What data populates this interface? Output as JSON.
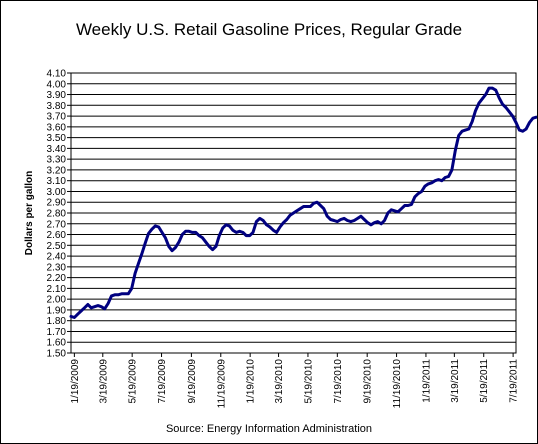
{
  "chart_data": {
    "type": "line",
    "title": "Weekly U.S. Retail Gasoline Prices, Regular Grade",
    "ylabel": "Dollars per gallon",
    "xlabel": "",
    "source": "Source:  Energy Information Administration",
    "ylim": [
      1.5,
      4.1
    ],
    "ystep": 0.1,
    "xlim": [
      "2009-01-12",
      "2011-07-25"
    ],
    "grid": "horizontal",
    "line_color": "#000080",
    "ytick_labels": [
      "1.50",
      "1.60",
      "1.70",
      "1.80",
      "1.90",
      "2.00",
      "2.10",
      "2.20",
      "2.30",
      "2.40",
      "2.50",
      "2.60",
      "2.70",
      "2.80",
      "2.90",
      "3.00",
      "3.10",
      "3.20",
      "3.30",
      "3.40",
      "3.50",
      "3.60",
      "3.70",
      "3.80",
      "3.90",
      "4.00",
      "4.10"
    ],
    "xtick_labels": [
      {
        "date": "2009-01-19",
        "label": "1/19/2009"
      },
      {
        "date": "2009-03-19",
        "label": "3/19/2009"
      },
      {
        "date": "2009-05-19",
        "label": "5/19/2009"
      },
      {
        "date": "2009-07-19",
        "label": "7/19/2009"
      },
      {
        "date": "2009-09-19",
        "label": "9/19/2009"
      },
      {
        "date": "2009-11-19",
        "label": "11/19/2009"
      },
      {
        "date": "2010-01-19",
        "label": "1/19/2010"
      },
      {
        "date": "2010-03-19",
        "label": "3/19/2010"
      },
      {
        "date": "2010-05-19",
        "label": "5/19/2010"
      },
      {
        "date": "2010-07-19",
        "label": "7/19/2010"
      },
      {
        "date": "2010-09-19",
        "label": "9/19/2010"
      },
      {
        "date": "2010-11-19",
        "label": "11/19/2010"
      },
      {
        "date": "2011-01-19",
        "label": "1/19/2011"
      },
      {
        "date": "2011-03-19",
        "label": "3/19/2011"
      },
      {
        "date": "2011-05-19",
        "label": "5/19/2011"
      },
      {
        "date": "2011-07-19",
        "label": "7/19/2011"
      }
    ],
    "series": [
      {
        "points": [
          [
            "2009-01-12",
            1.84
          ],
          [
            "2009-01-19",
            1.83
          ],
          [
            "2009-01-26",
            1.86
          ],
          [
            "2009-02-02",
            1.89
          ],
          [
            "2009-02-09",
            1.92
          ],
          [
            "2009-02-16",
            1.95
          ],
          [
            "2009-02-23",
            1.92
          ],
          [
            "2009-03-02",
            1.93
          ],
          [
            "2009-03-09",
            1.94
          ],
          [
            "2009-03-16",
            1.93
          ],
          [
            "2009-03-23",
            1.91
          ],
          [
            "2009-03-30",
            1.96
          ],
          [
            "2009-04-06",
            2.03
          ],
          [
            "2009-04-13",
            2.04
          ],
          [
            "2009-04-20",
            2.04
          ],
          [
            "2009-04-27",
            2.05
          ],
          [
            "2009-05-04",
            2.05
          ],
          [
            "2009-05-11",
            2.05
          ],
          [
            "2009-05-18",
            2.1
          ],
          [
            "2009-05-25",
            2.24
          ],
          [
            "2009-06-01",
            2.33
          ],
          [
            "2009-06-08",
            2.42
          ],
          [
            "2009-06-15",
            2.52
          ],
          [
            "2009-06-22",
            2.61
          ],
          [
            "2009-06-29",
            2.65
          ],
          [
            "2009-07-06",
            2.68
          ],
          [
            "2009-07-13",
            2.67
          ],
          [
            "2009-07-20",
            2.62
          ],
          [
            "2009-07-27",
            2.57
          ],
          [
            "2009-08-03",
            2.49
          ],
          [
            "2009-08-10",
            2.45
          ],
          [
            "2009-08-17",
            2.48
          ],
          [
            "2009-08-24",
            2.53
          ],
          [
            "2009-08-31",
            2.6
          ],
          [
            "2009-09-07",
            2.63
          ],
          [
            "2009-09-14",
            2.63
          ],
          [
            "2009-09-21",
            2.62
          ],
          [
            "2009-09-28",
            2.62
          ],
          [
            "2009-10-05",
            2.59
          ],
          [
            "2009-10-12",
            2.57
          ],
          [
            "2009-10-19",
            2.53
          ],
          [
            "2009-10-26",
            2.49
          ],
          [
            "2009-11-02",
            2.46
          ],
          [
            "2009-11-09",
            2.49
          ],
          [
            "2009-11-16",
            2.59
          ],
          [
            "2009-11-23",
            2.66
          ],
          [
            "2009-11-30",
            2.69
          ],
          [
            "2009-12-07",
            2.68
          ],
          [
            "2009-12-14",
            2.64
          ],
          [
            "2009-12-21",
            2.62
          ],
          [
            "2009-12-28",
            2.63
          ],
          [
            "2010-01-04",
            2.62
          ],
          [
            "2010-01-11",
            2.59
          ],
          [
            "2010-01-18",
            2.59
          ],
          [
            "2010-01-25",
            2.62
          ],
          [
            "2010-02-01",
            2.72
          ],
          [
            "2010-02-08",
            2.75
          ],
          [
            "2010-02-15",
            2.73
          ],
          [
            "2010-02-22",
            2.69
          ],
          [
            "2010-03-01",
            2.67
          ],
          [
            "2010-03-08",
            2.64
          ],
          [
            "2010-03-15",
            2.62
          ],
          [
            "2010-03-22",
            2.67
          ],
          [
            "2010-03-29",
            2.71
          ],
          [
            "2010-04-05",
            2.74
          ],
          [
            "2010-04-12",
            2.78
          ],
          [
            "2010-04-19",
            2.8
          ],
          [
            "2010-04-26",
            2.82
          ],
          [
            "2010-05-03",
            2.84
          ],
          [
            "2010-05-10",
            2.86
          ],
          [
            "2010-05-17",
            2.86
          ],
          [
            "2010-05-24",
            2.86
          ],
          [
            "2010-05-31",
            2.89
          ],
          [
            "2010-06-07",
            2.9
          ],
          [
            "2010-06-14",
            2.87
          ],
          [
            "2010-06-21",
            2.84
          ],
          [
            "2010-06-28",
            2.77
          ],
          [
            "2010-07-05",
            2.74
          ],
          [
            "2010-07-12",
            2.73
          ],
          [
            "2010-07-19",
            2.72
          ],
          [
            "2010-07-26",
            2.74
          ],
          [
            "2010-08-02",
            2.75
          ],
          [
            "2010-08-09",
            2.73
          ],
          [
            "2010-08-16",
            2.72
          ],
          [
            "2010-08-23",
            2.73
          ],
          [
            "2010-08-30",
            2.75
          ],
          [
            "2010-09-06",
            2.77
          ],
          [
            "2010-09-13",
            2.74
          ],
          [
            "2010-09-20",
            2.71
          ],
          [
            "2010-09-27",
            2.69
          ],
          [
            "2010-10-04",
            2.71
          ],
          [
            "2010-10-11",
            2.72
          ],
          [
            "2010-10-18",
            2.7
          ],
          [
            "2010-10-25",
            2.73
          ],
          [
            "2010-11-01",
            2.8
          ],
          [
            "2010-11-08",
            2.83
          ],
          [
            "2010-11-15",
            2.82
          ],
          [
            "2010-11-22",
            2.81
          ],
          [
            "2010-11-29",
            2.84
          ],
          [
            "2010-12-06",
            2.87
          ],
          [
            "2010-12-13",
            2.87
          ],
          [
            "2010-12-20",
            2.88
          ],
          [
            "2010-12-27",
            2.95
          ],
          [
            "2011-01-03",
            2.98
          ],
          [
            "2011-01-10",
            3.0
          ],
          [
            "2011-01-17",
            3.05
          ],
          [
            "2011-01-24",
            3.07
          ],
          [
            "2011-01-31",
            3.08
          ],
          [
            "2011-02-07",
            3.1
          ],
          [
            "2011-02-14",
            3.11
          ],
          [
            "2011-02-21",
            3.1
          ],
          [
            "2011-02-28",
            3.13
          ],
          [
            "2011-03-07",
            3.14
          ],
          [
            "2011-03-14",
            3.2
          ],
          [
            "2011-03-21",
            3.38
          ],
          [
            "2011-03-28",
            3.52
          ],
          [
            "2011-04-04",
            3.56
          ],
          [
            "2011-04-11",
            3.57
          ],
          [
            "2011-04-18",
            3.58
          ],
          [
            "2011-04-25",
            3.65
          ],
          [
            "2011-05-02",
            3.75
          ],
          [
            "2011-05-09",
            3.82
          ],
          [
            "2011-05-16",
            3.86
          ],
          [
            "2011-05-23",
            3.9
          ],
          [
            "2011-05-30",
            3.96
          ],
          [
            "2011-06-06",
            3.96
          ],
          [
            "2011-06-13",
            3.94
          ],
          [
            "2011-06-20",
            3.87
          ],
          [
            "2011-06-27",
            3.81
          ],
          [
            "2011-07-04",
            3.78
          ],
          [
            "2011-07-11",
            3.74
          ],
          [
            "2011-07-18",
            3.7
          ],
          [
            "2011-07-25",
            3.64
          ],
          [
            "2011-08-01",
            3.57
          ],
          [
            "2011-08-08",
            3.56
          ],
          [
            "2011-08-15",
            3.58
          ],
          [
            "2011-08-22",
            3.64
          ],
          [
            "2011-08-29",
            3.68
          ],
          [
            "2011-09-05",
            3.69
          ]
        ]
      }
    ]
  }
}
